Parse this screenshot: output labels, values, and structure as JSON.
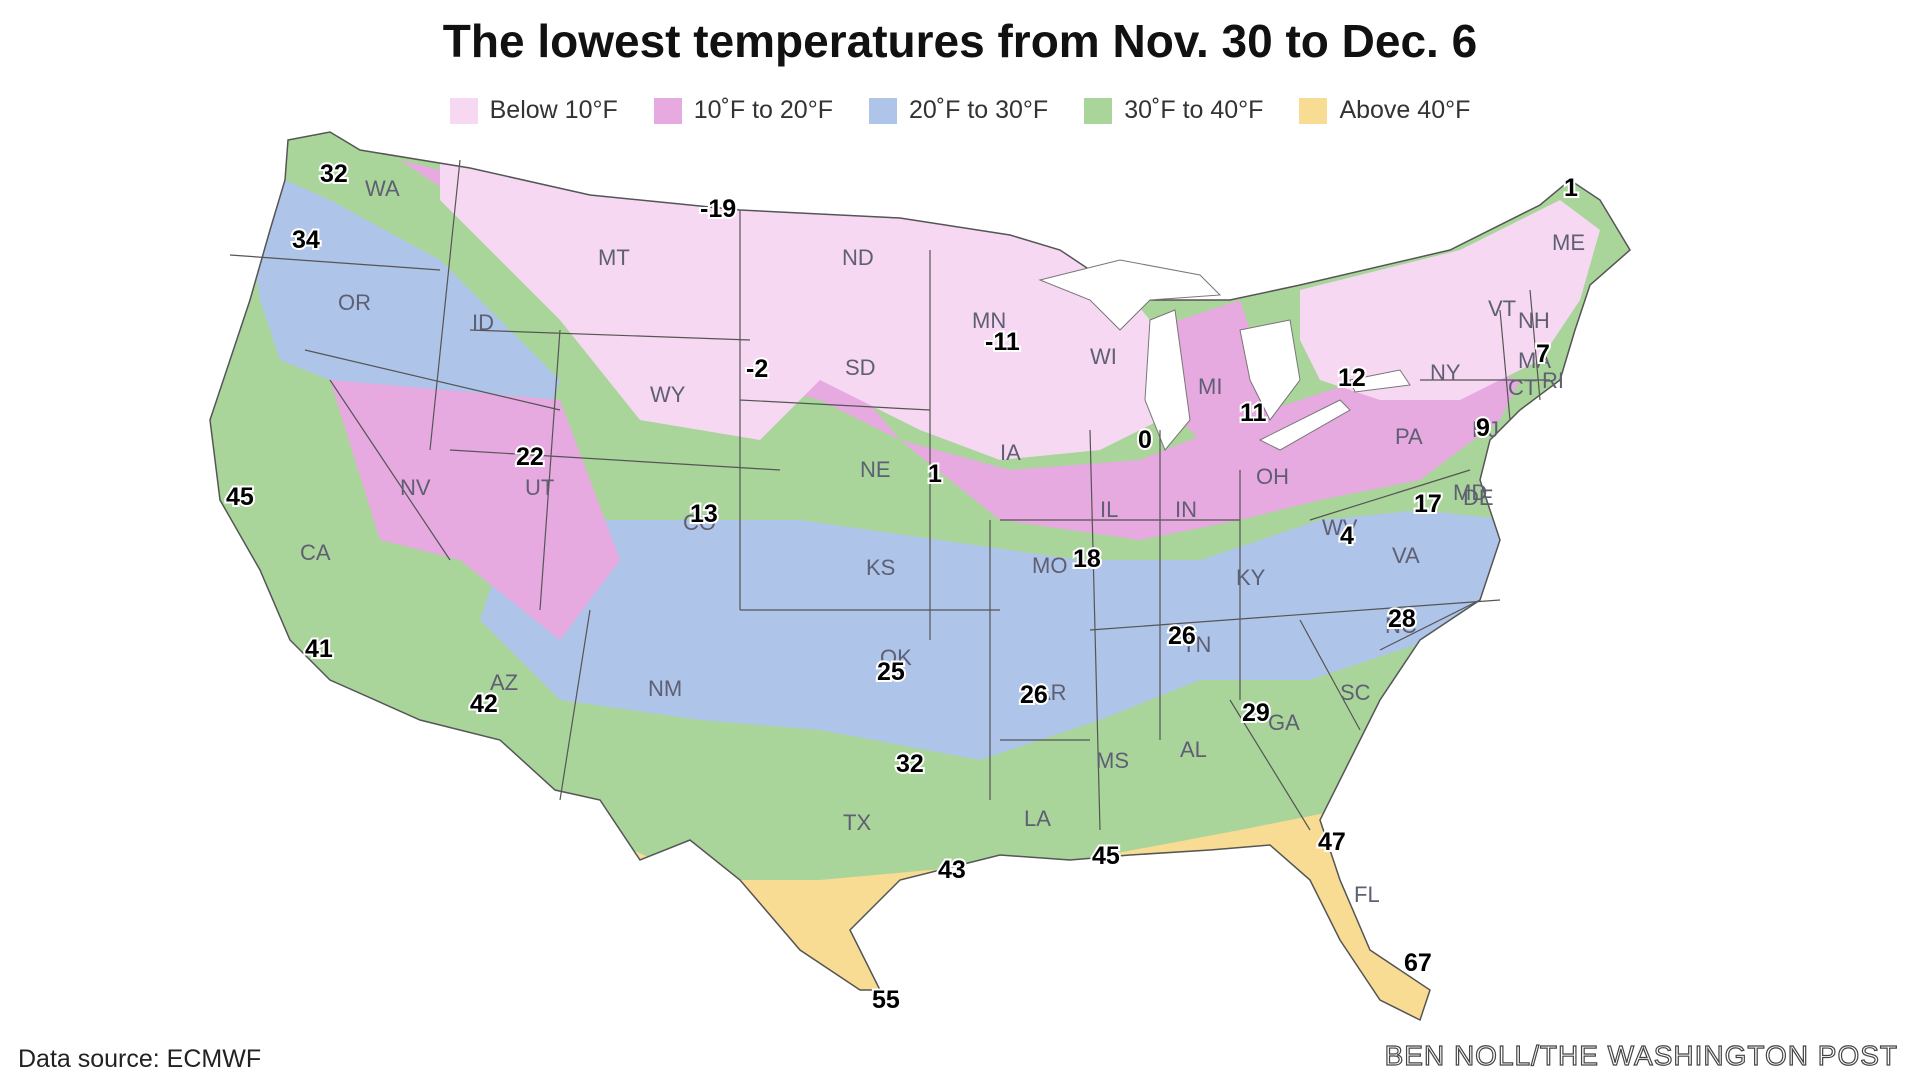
{
  "title": "The lowest temperatures from Nov. 30 to Dec. 6",
  "legend": [
    {
      "label": "Below 10°F",
      "color": "#f6d8f3"
    },
    {
      "label": "10˚F to 20°F",
      "color": "#e6a9e0"
    },
    {
      "label": "20˚F to 30°F",
      "color": "#aec4e8"
    },
    {
      "label": "30˚F to 40°F",
      "color": "#a9d59a"
    },
    {
      "label": "Above 40°F",
      "color": "#f8dc94"
    }
  ],
  "states": [
    "WA",
    "OR",
    "CA",
    "ID",
    "NV",
    "MT",
    "WY",
    "UT",
    "AZ",
    "CO",
    "NM",
    "ND",
    "SD",
    "NE",
    "KS",
    "OK",
    "TX",
    "MN",
    "IA",
    "MO",
    "AR",
    "LA",
    "WI",
    "IL",
    "MI",
    "IN",
    "KY",
    "TN",
    "MS",
    "AL",
    "GA",
    "FL",
    "SC",
    "NC",
    "VA",
    "WV",
    "OH",
    "PA",
    "NY",
    "VT",
    "NH",
    "ME",
    "MA",
    "CT",
    "RI",
    "NJ",
    "MD",
    "DE"
  ],
  "temps": [
    "32",
    "34",
    "-19",
    "45",
    "41",
    "42",
    "22",
    "13",
    "-2",
    "-11",
    "1",
    "0",
    "18",
    "25",
    "26",
    "32",
    "43",
    "55",
    "45",
    "26",
    "29",
    "11",
    "12",
    "9",
    "7",
    "1",
    "4",
    "17",
    "28",
    "47",
    "67"
  ],
  "source": "Data source: ECMWF",
  "credit": "BEN NOLL/THE WASHINGTON POST"
}
